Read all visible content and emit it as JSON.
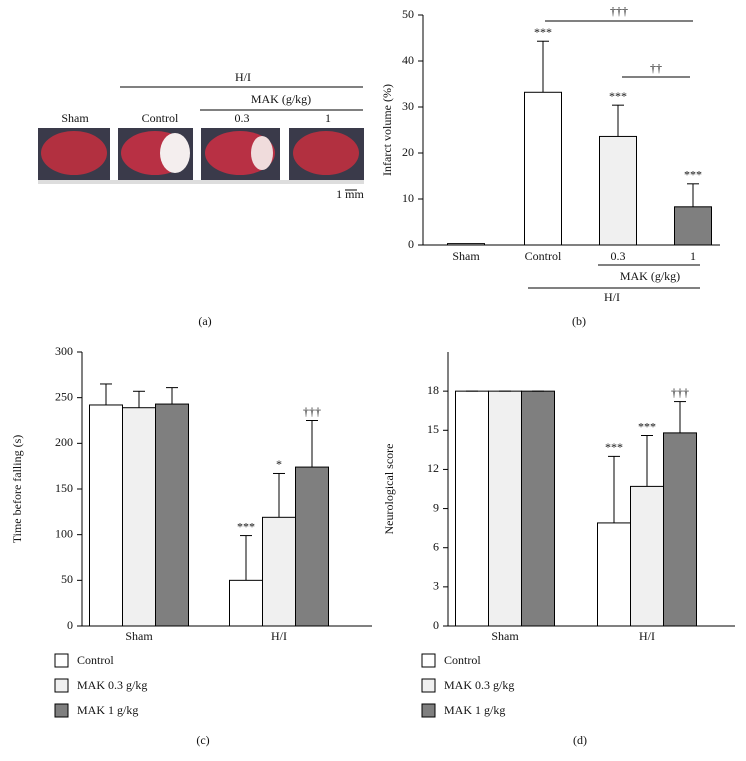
{
  "panel_a": {
    "group": "H/I",
    "subgroup": "MAK (g/kg)",
    "labels": [
      "Sham",
      "Control",
      "0.3",
      "1"
    ],
    "scale": "1 mm"
  },
  "panel_labels": [
    "(a)",
    "(b)",
    "(c)",
    "(d)"
  ],
  "chart_data": [
    {
      "type": "bar",
      "ylabel": "Infarct volume (%)",
      "categories": [
        "Sham",
        "Control",
        "0.3",
        "1"
      ],
      "values": [
        0.3,
        33.2,
        23.6,
        8.3
      ],
      "errors": [
        null,
        11.1,
        6.8,
        5.0
      ],
      "colors": [
        "#ffffff",
        "#ffffff",
        "#f0f0f0",
        "#7f7f7f"
      ],
      "annotations": [
        null,
        "***",
        "***",
        "***"
      ],
      "brackets": [
        "†††",
        "††"
      ],
      "group_labels": [
        "MAK (g/kg)",
        "H/I"
      ],
      "ylim": [
        0,
        50
      ],
      "yticks": [
        0,
        10,
        20,
        30,
        40,
        50
      ]
    },
    {
      "type": "grouped_bar",
      "ylabel": "Time before falling (s)",
      "categories": [
        "Sham",
        "H/I"
      ],
      "series": [
        {
          "name": "Control",
          "color": "#ffffff",
          "values": [
            242,
            50
          ],
          "errors": [
            23,
            49
          ],
          "annotations": [
            null,
            "***"
          ]
        },
        {
          "name": "MAK 0.3 g/kg",
          "color": "#f0f0f0",
          "values": [
            239,
            119
          ],
          "errors": [
            18,
            48
          ],
          "annotations": [
            null,
            "*"
          ]
        },
        {
          "name": "MAK 1 g/kg",
          "color": "#7f7f7f",
          "values": [
            243,
            174
          ],
          "errors": [
            18,
            51
          ],
          "annotations": [
            null,
            "†††"
          ]
        }
      ],
      "ylim": [
        0,
        300
      ],
      "yticks": [
        0,
        50,
        100,
        150,
        200,
        250,
        300
      ]
    },
    {
      "type": "grouped_bar",
      "ylabel": "Neurological score",
      "categories": [
        "Sham",
        "H/I"
      ],
      "series": [
        {
          "name": "Control",
          "color": "#ffffff",
          "values": [
            18,
            7.9
          ],
          "errors": [
            0,
            5.1
          ],
          "annotations": [
            null,
            "***"
          ]
        },
        {
          "name": "MAK 0.3 g/kg",
          "color": "#f0f0f0",
          "values": [
            18,
            10.7
          ],
          "errors": [
            0,
            3.9
          ],
          "annotations": [
            null,
            "***"
          ]
        },
        {
          "name": "MAK 1 g/kg",
          "color": "#7f7f7f",
          "values": [
            18,
            14.8
          ],
          "errors": [
            0,
            2.4
          ],
          "annotations": [
            null,
            "†††"
          ]
        }
      ],
      "ylim": [
        0,
        21
      ],
      "yticks": [
        0,
        3,
        6,
        9,
        12,
        15,
        18
      ]
    }
  ]
}
